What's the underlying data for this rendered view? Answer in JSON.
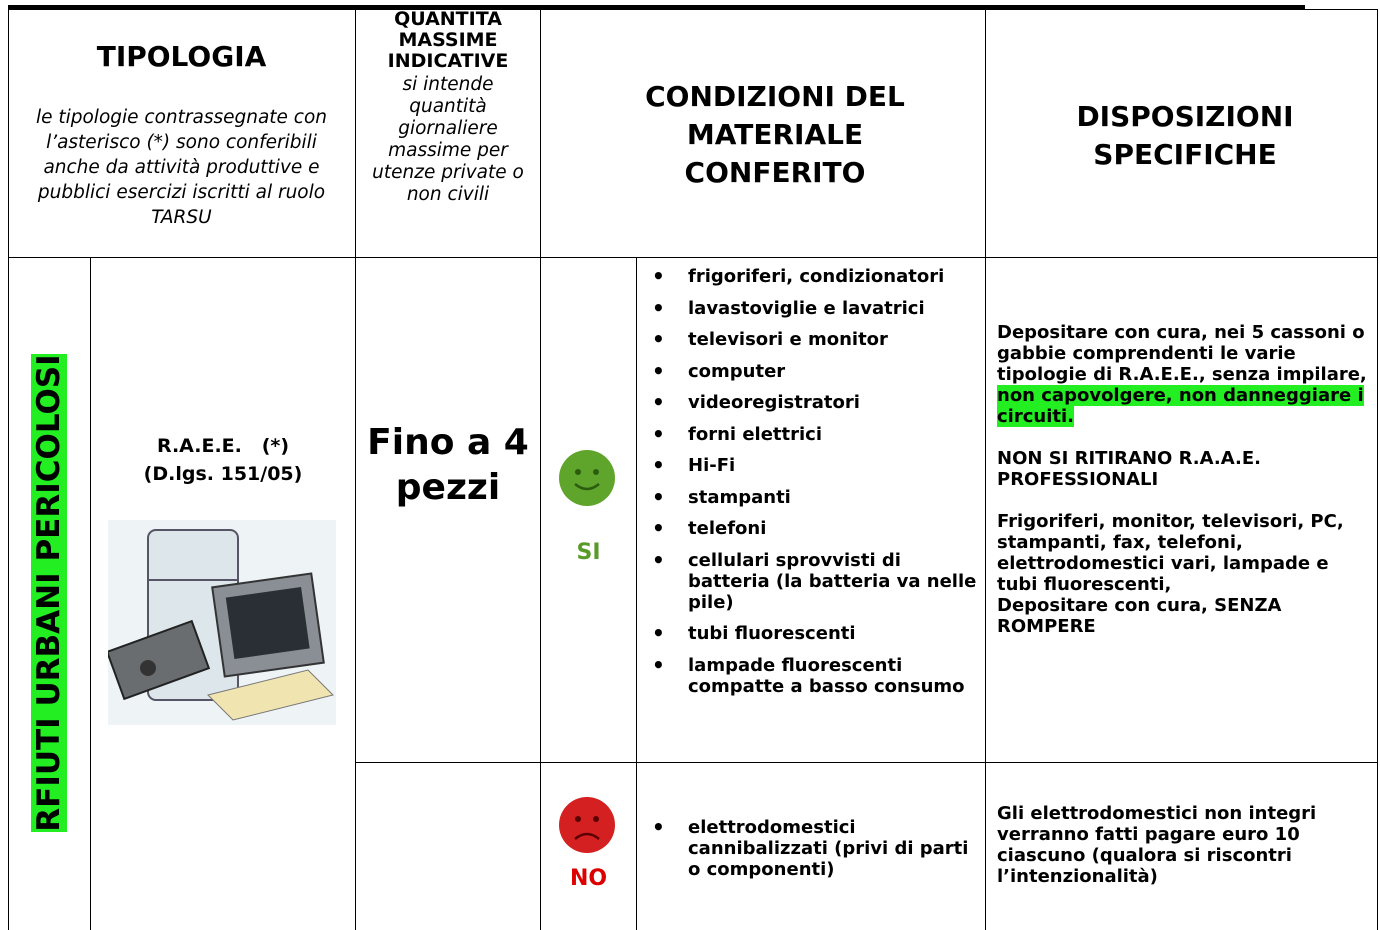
{
  "header": {
    "tipologia": {
      "title": "TIPOLOGIA",
      "note": "le tipologie contrassegnate con l’asterisco (*) sono conferibili anche da attività produttive e pubblici esercizi iscritti al ruolo TARSU"
    },
    "quantita": {
      "title": "QUANTITÀ MASSIME INDICATIVE",
      "note": "si intende quantità giornaliere massime per utenze private o non civili"
    },
    "condizioni": {
      "title": "CONDIZIONI DEL MATERIALE CONFERITO"
    },
    "disposizioni": {
      "title": "DISPOSIZIONI SPECIFICHE"
    }
  },
  "body": {
    "category": "RFIUTI URBANI PERICOLOSI",
    "type": "R.A.E.E.   (*)",
    "law": "(D.lgs. 151/05)",
    "quantity": "Fino a 4 pezzi",
    "rows": [
      {
        "verdict": "SI",
        "items": [
          "frigoriferi, condizionatori",
          "lavastoviglie e lavatrici",
          "televisori e monitor",
          "computer",
          "videoregistratori",
          "forni elettrici",
          "Hi-Fi",
          "stampanti",
          "telefoni",
          "cellulari sprovvisti di batteria (la batteria va nelle pile)",
          "tubi fluorescenti",
          "lampade fluorescenti compatte a basso consumo"
        ],
        "disposizioni": {
          "p1": "Depositare con cura, nei 5 cassoni o gabbie comprendenti le varie tipologie di R.A.E.E., senza impilare, ",
          "p1_highlight": "non capovolgere, non danneggiare i circuiti.",
          "p2": "NON SI RITIRANO R.A.A.E. PROFESSIONALI",
          "p3": "Frigoriferi, monitor, televisori, PC, stampanti, fax, telefoni, elettrodomestici vari, lampade e tubi fluorescenti,",
          "p4": "Depositare con cura, SENZA ROMPERE"
        }
      },
      {
        "verdict": "NO",
        "items": [
          "elettrodomestici cannibalizzati (privi di parti o componenti)"
        ],
        "disposizioni": {
          "p1": "Gli elettrodomestici non integri verranno fatti pagare euro 10 ciascuno (qualora si riscontri l’intenzionalità)"
        }
      }
    ]
  }
}
